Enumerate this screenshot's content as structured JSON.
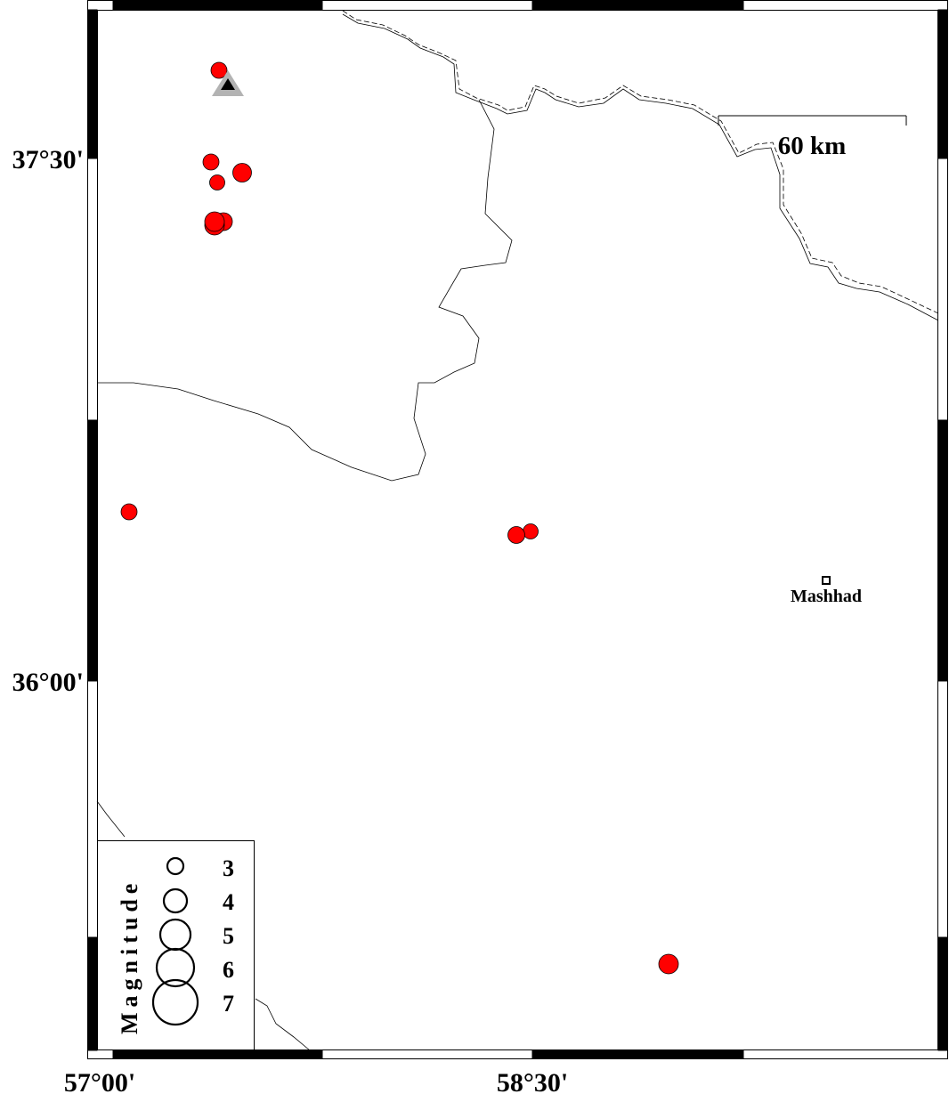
{
  "map": {
    "axis_labels": {
      "lat": [
        "37°30'",
        "36°00'"
      ],
      "lon": [
        "57°00'",
        "58°30'"
      ]
    },
    "scale_bar": {
      "label": "60 km"
    },
    "city": {
      "name": "Mashhad"
    },
    "legend": {
      "title": "Magnitude",
      "entries": [
        "3",
        "4",
        "5",
        "6",
        "7"
      ]
    },
    "colors": {
      "event_fill": "#ff0000",
      "station_outer": "#b3b3b3",
      "station_inner": "#000000"
    },
    "symbols": {
      "event": "red-circle-earthquake",
      "station": "triangle-station",
      "city": "square-city-marker"
    }
  }
}
